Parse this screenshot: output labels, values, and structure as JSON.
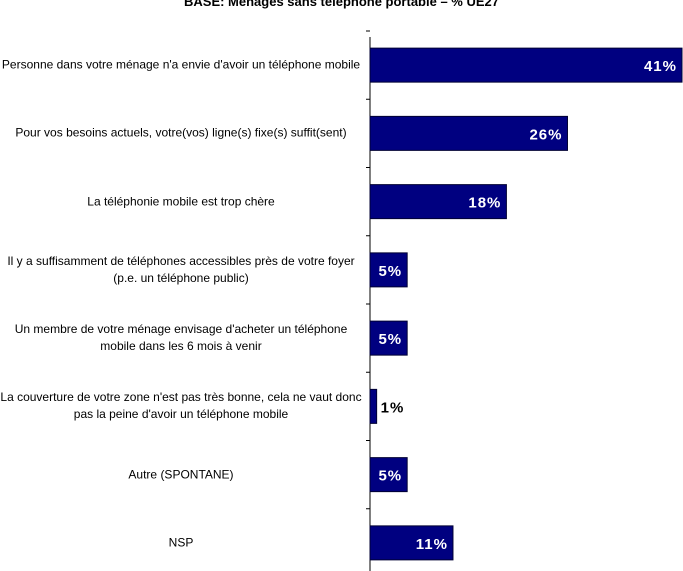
{
  "chart_data": {
    "type": "hbar",
    "title": "BASE: Ménages sans téléphone portable – % UE27",
    "categories": [
      "Personne dans votre ménage n'a envie d'avoir un téléphone mobile",
      "Pour vos besoins actuels, votre(vos) ligne(s) fixe(s) suffit(sent)",
      "La téléphonie mobile est trop chère",
      "Il y a suffisamment de téléphones accessibles près de votre foyer (p.e. un téléphone public)",
      "Un membre de votre ménage envisage d'acheter un téléphone mobile dans les 6 mois à venir",
      "La couverture de votre zone n'est pas très bonne, cela ne vaut donc pas la peine d'avoir un téléphone mobile",
      "Autre (SPONTANE)",
      "NSP"
    ],
    "values": [
      41,
      26,
      18,
      5,
      5,
      1,
      5,
      11
    ],
    "value_labels": [
      "41%",
      "26%",
      "18%",
      "5%",
      "5%",
      "1%",
      "5%",
      "11%"
    ],
    "color": "#000080",
    "xlim": [
      0,
      41
    ]
  }
}
